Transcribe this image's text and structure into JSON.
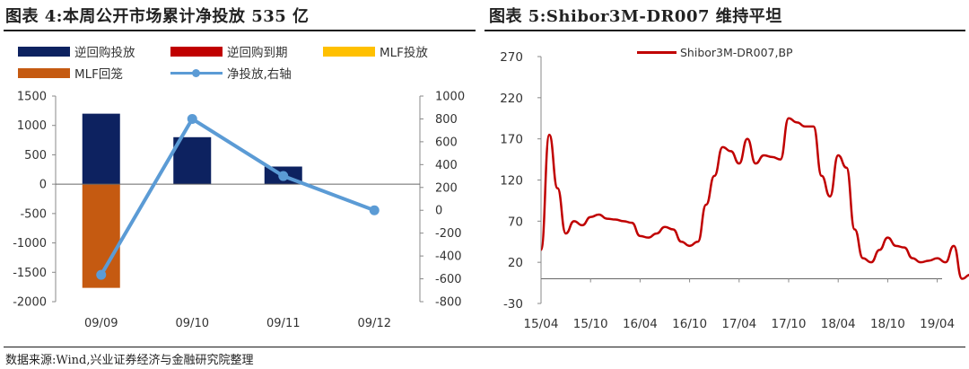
{
  "titles": {
    "left": "图表 4:本周公开市场累计净投放 535 亿",
    "right": "图表 5:Shibor3M-DR007 维持平坦"
  },
  "source": "数据来源:Wind,兴业证券经济与金融研究院整理",
  "colors": {
    "reverse_repo_inject": "#0d2260",
    "reverse_repo_mature": "#c00000",
    "mlf_inject": "#ffc000",
    "mlf_mature": "#c55a11",
    "net_line": "#5b9bd5",
    "spread_line": "#c00000"
  },
  "chart_data": [
    {
      "type": "bar",
      "categories": [
        "09/09",
        "09/10",
        "09/11",
        "09/12"
      ],
      "series": [
        {
          "name": "逆回购投放",
          "values": [
            1200,
            800,
            300,
            0
          ],
          "axis": "left"
        },
        {
          "name": "逆回购到期",
          "values": [
            0,
            0,
            0,
            0
          ],
          "axis": "left"
        },
        {
          "name": "MLF投放",
          "values": [
            0,
            0,
            0,
            0
          ],
          "axis": "left"
        },
        {
          "name": "MLF回笼",
          "values": [
            -1765,
            0,
            0,
            0
          ],
          "axis": "left"
        },
        {
          "name": "净投放,右轴",
          "type": "line",
          "values": [
            -565,
            800,
            300,
            0
          ],
          "axis": "right"
        }
      ],
      "ylim_left": [
        -2000,
        1500
      ],
      "yticks_left": [
        "1500",
        "1000",
        "500",
        "0",
        "-500",
        "-1000",
        "-1500",
        "-2000"
      ],
      "ylim_right": [
        -800,
        1000
      ],
      "yticks_right": [
        "1000",
        "800",
        "600",
        "400",
        "200",
        "0",
        "-200",
        "-400",
        "-600",
        "-800"
      ],
      "legend_position": "top"
    },
    {
      "type": "line",
      "series": [
        {
          "name": "Shibor3M-DR007,BP",
          "x": [
            "2015-04",
            "2015-05",
            "2015-06",
            "2015-07",
            "2015-08",
            "2015-09",
            "2015-10",
            "2015-11",
            "2015-12",
            "2016-01",
            "2016-02",
            "2016-03",
            "2016-04",
            "2016-05",
            "2016-06",
            "2016-07",
            "2016-08",
            "2016-09",
            "2016-10",
            "2016-11",
            "2016-12",
            "2017-01",
            "2017-02",
            "2017-03",
            "2017-04",
            "2017-05",
            "2017-06",
            "2017-07",
            "2017-08",
            "2017-09",
            "2017-10",
            "2017-11",
            "2017-12",
            "2018-01",
            "2018-02",
            "2018-03",
            "2018-04",
            "2018-05",
            "2018-06",
            "2018-07",
            "2018-08",
            "2018-09",
            "2018-10",
            "2018-11",
            "2018-12",
            "2019-01",
            "2019-02",
            "2019-03",
            "2019-04",
            "2019-05",
            "2019-06",
            "2019-07",
            "2019-08",
            "2019-09"
          ],
          "y": [
            35,
            175,
            110,
            55,
            70,
            65,
            75,
            78,
            73,
            72,
            70,
            68,
            52,
            50,
            55,
            63,
            60,
            45,
            40,
            45,
            90,
            125,
            160,
            155,
            140,
            170,
            140,
            150,
            148,
            145,
            195,
            190,
            185,
            185,
            125,
            100,
            150,
            135,
            60,
            25,
            20,
            35,
            50,
            40,
            38,
            25,
            20,
            22,
            25,
            20,
            40,
            0,
            5,
            5
          ]
        }
      ],
      "xticks": [
        "15/04",
        "15/10",
        "16/04",
        "16/10",
        "17/04",
        "17/10",
        "18/04",
        "18/10",
        "19/04"
      ],
      "yticks": [
        "270",
        "220",
        "170",
        "120",
        "70",
        "20",
        "-30"
      ],
      "ylim": [
        -30,
        270
      ],
      "legend_position": "top-center"
    }
  ]
}
